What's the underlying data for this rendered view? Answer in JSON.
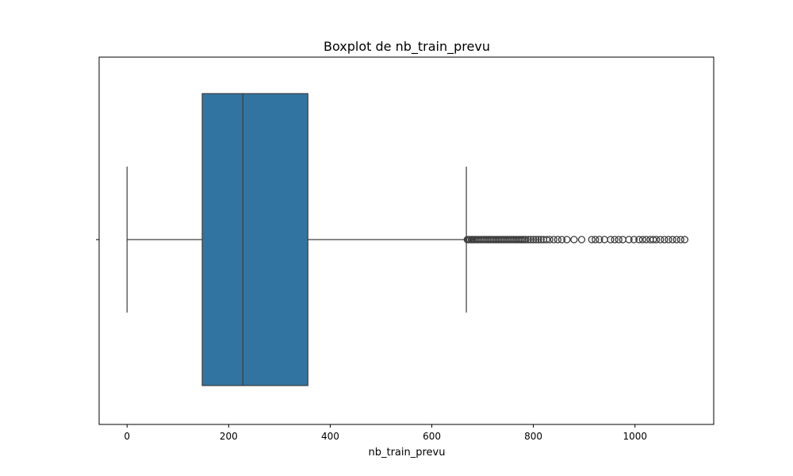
{
  "chart_data": {
    "type": "boxplot",
    "title": "Boxplot de nb_train_prevu",
    "xlabel": "nb_train_prevu",
    "ylabel": "",
    "orientation": "horizontal",
    "xlim": [
      -55,
      1155
    ],
    "xticks": [
      0,
      200,
      400,
      600,
      800,
      1000
    ],
    "grid": false,
    "box_color": "#3274a1",
    "edge_color": "#3d3d3d",
    "stats": {
      "whisker_low": 0,
      "q1": 148,
      "median": 228,
      "q3": 356,
      "whisker_high": 668
    },
    "outliers": [
      670,
      672,
      675,
      678,
      680,
      683,
      686,
      689,
      692,
      695,
      698,
      701,
      704,
      707,
      710,
      713,
      716,
      719,
      722,
      725,
      728,
      731,
      734,
      737,
      740,
      743,
      746,
      749,
      752,
      755,
      758,
      761,
      764,
      767,
      770,
      773,
      776,
      779,
      782,
      785,
      790,
      795,
      800,
      805,
      810,
      815,
      820,
      826,
      832,
      840,
      848,
      856,
      866,
      880,
      895,
      915,
      922,
      930,
      940,
      952,
      960,
      968,
      976,
      988,
      998,
      1008,
      1015,
      1022,
      1030,
      1036,
      1042,
      1050,
      1058,
      1066,
      1074,
      1082,
      1090,
      1098
    ]
  }
}
